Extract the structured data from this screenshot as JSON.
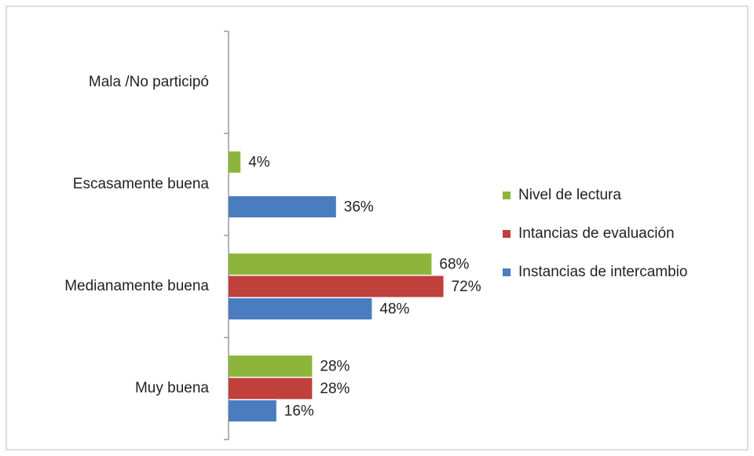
{
  "chart_data": {
    "type": "hbar",
    "categories": [
      "Mala /No participó",
      "Escasamente buena",
      "Medianamente buena",
      "Muy buena"
    ],
    "series": [
      {
        "name": "Nivel de lectura",
        "color": "#8db53c",
        "values": [
          null,
          4,
          68,
          28
        ],
        "value_labels": [
          null,
          "4%",
          "68%",
          "28%"
        ]
      },
      {
        "name": "Intancias de evaluación",
        "color": "#c0403c",
        "values": [
          null,
          null,
          72,
          28
        ],
        "value_labels": [
          null,
          null,
          "72%",
          "28%"
        ]
      },
      {
        "name": "Instancias de intercambio",
        "color": "#4a7cc0",
        "values": [
          null,
          36,
          48,
          16
        ],
        "value_labels": [
          null,
          "36%",
          "48%",
          "16%"
        ]
      }
    ],
    "legend": "right"
  }
}
